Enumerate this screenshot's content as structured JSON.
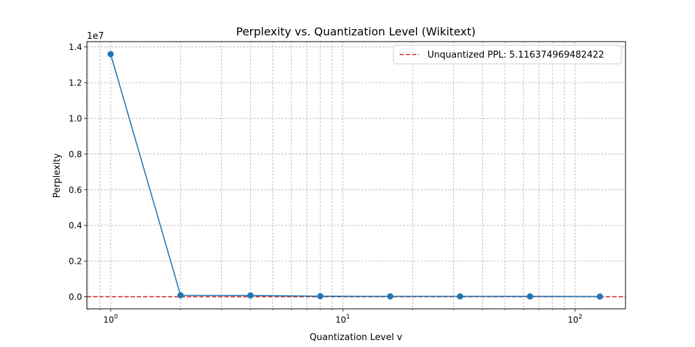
{
  "chart_data": {
    "type": "line",
    "title": "Perplexity vs. Quantization Level (Wikitext)",
    "xlabel": "Quantization Level v",
    "ylabel": "Perplexity",
    "xscale": "log",
    "xlim": [
      0.79,
      165
    ],
    "ylim": [
      -680000,
      14300000
    ],
    "y_offset_label": "1e7",
    "x_ticks": [
      {
        "value": 1,
        "base": "10",
        "exp": "0"
      },
      {
        "value": 10,
        "base": "10",
        "exp": "1"
      },
      {
        "value": 100,
        "base": "10",
        "exp": "2"
      }
    ],
    "x_minor_ticks": [
      0.8,
      0.9,
      2,
      3,
      4,
      5,
      6,
      7,
      8,
      9,
      20,
      30,
      40,
      50,
      60,
      70,
      80,
      90
    ],
    "y_ticks": [
      {
        "value": 0,
        "label": "0.0"
      },
      {
        "value": 2000000,
        "label": "0.2"
      },
      {
        "value": 4000000,
        "label": "0.4"
      },
      {
        "value": 6000000,
        "label": "0.6"
      },
      {
        "value": 8000000,
        "label": "0.8"
      },
      {
        "value": 10000000,
        "label": "1.0"
      },
      {
        "value": 12000000,
        "label": "1.2"
      },
      {
        "value": 14000000,
        "label": "1.4"
      }
    ],
    "grid": true,
    "legend_position": "top-right",
    "series": [
      {
        "color": "#1f77b4",
        "x": [
          1,
          2,
          4,
          8,
          16,
          32,
          64,
          128
        ],
        "y": [
          13600000,
          80000,
          70000,
          30000,
          20000,
          20000,
          15000,
          10000
        ]
      }
    ],
    "reference_lines": [
      {
        "name": "Unquantized PPL: 5.116374969482422",
        "y": 5.116374969482422,
        "color": "#d62728",
        "style": "dashed"
      }
    ]
  }
}
